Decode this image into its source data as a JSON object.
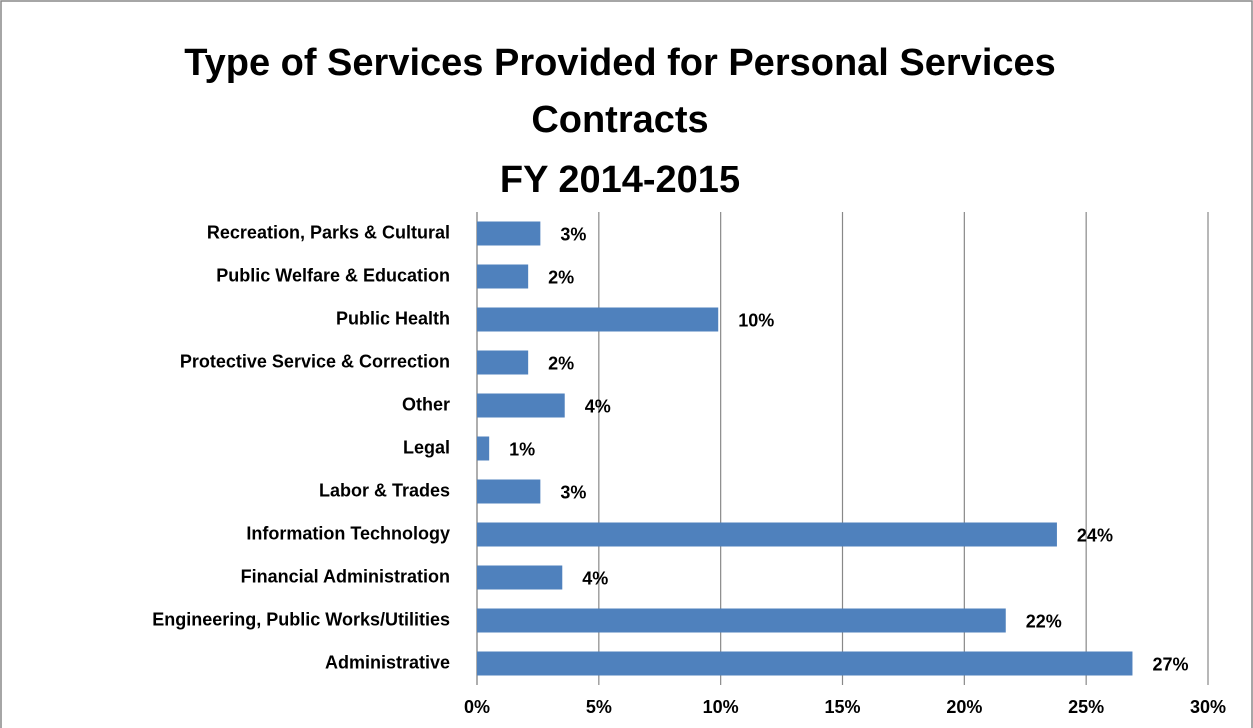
{
  "chart_data": {
    "type": "bar",
    "orientation": "horizontal",
    "title": [
      "Type of Services Provided for Personal Services",
      "Contracts",
      "FY 2014-2015"
    ],
    "categories": [
      "Recreation, Parks & Cultural",
      "Public Welfare & Education",
      "Public Health",
      "Protective Service & Correction",
      "Other",
      "Legal",
      "Labor & Trades",
      "Information Technology",
      "Financial Administration",
      "Engineering, Public Works/Utilities",
      "Administrative"
    ],
    "values": [
      2.6,
      2.1,
      9.9,
      2.1,
      3.6,
      0.5,
      2.6,
      23.8,
      3.5,
      21.7,
      26.9
    ],
    "value_labels": [
      "3%",
      "2%",
      "10%",
      "2%",
      "4%",
      "1%",
      "3%",
      "24%",
      "4%",
      "22%",
      "27%"
    ],
    "color": "#4f81bd",
    "xlim": [
      0,
      30
    ],
    "xticks": [
      {
        "value": 0,
        "label": "0%"
      },
      {
        "value": 5,
        "label": "5%"
      },
      {
        "value": 10,
        "label": "10%"
      },
      {
        "value": 15,
        "label": "15%"
      },
      {
        "value": 20,
        "label": "20%"
      },
      {
        "value": 25,
        "label": "25%"
      },
      {
        "value": 30,
        "label": "30%"
      }
    ],
    "grid": true
  }
}
